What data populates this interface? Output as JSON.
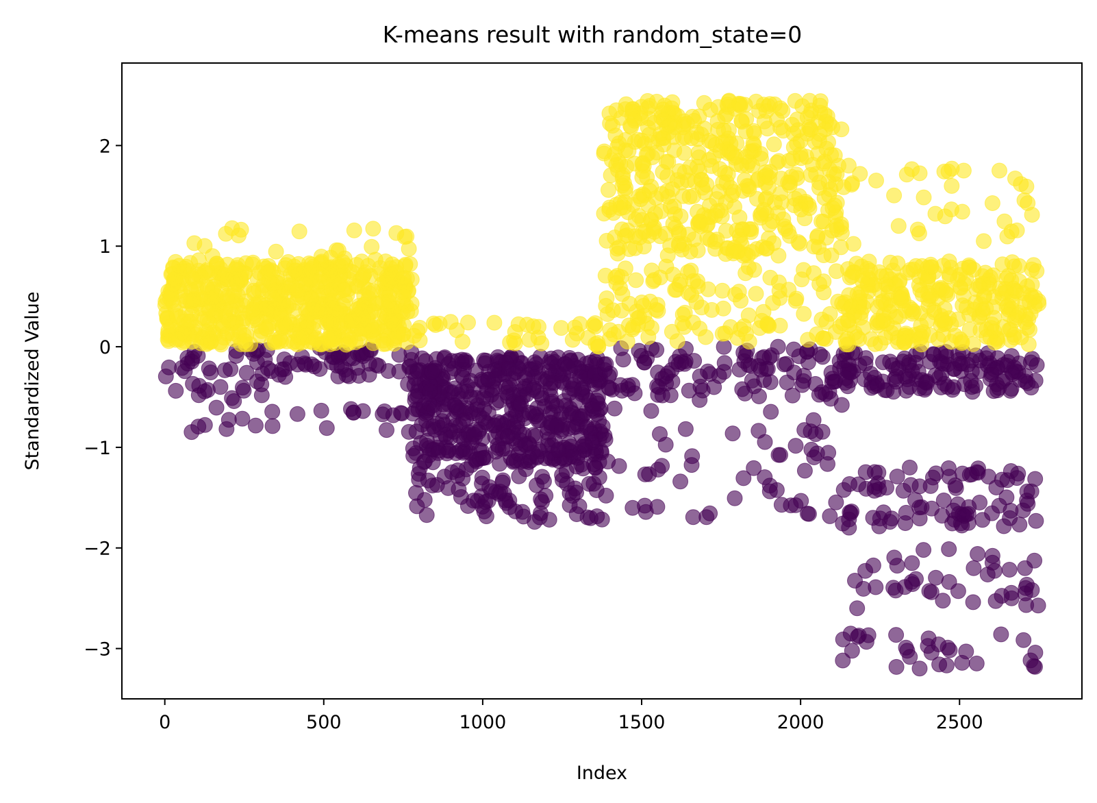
{
  "chart_data": {
    "type": "scatter",
    "title": "K-means result with random_state=0",
    "xlabel": "Index",
    "ylabel": "Standardized Value",
    "xlim": [
      -135,
      2885
    ],
    "ylim": [
      -3.5,
      2.82
    ],
    "xticks": [
      0,
      500,
      1000,
      1500,
      2000,
      2500
    ],
    "yticks": [
      -3,
      -2,
      -1,
      0,
      1,
      2
    ],
    "grid": false,
    "legend": false,
    "n_points": 2750,
    "clusters": [
      {
        "cluster": 0,
        "color": "#440154",
        "opacity": 0.6
      },
      {
        "cluster": 1,
        "color": "#fde725",
        "opacity": 0.6
      }
    ],
    "segments": [
      {
        "x_range": [
          0,
          780
        ],
        "bands": [
          {
            "cluster": 1,
            "y_range": [
              0.02,
              0.85
            ],
            "share": 0.82
          },
          {
            "cluster": 1,
            "y_range": [
              0.85,
              1.18
            ],
            "share": 0.03
          },
          {
            "cluster": 0,
            "y_range": [
              -0.3,
              0.0
            ],
            "share": 0.1
          },
          {
            "cluster": 0,
            "y_range": [
              -0.85,
              -0.3
            ],
            "share": 0.05
          }
        ]
      },
      {
        "x_range": [
          780,
          1380
        ],
        "bands": [
          {
            "cluster": 0,
            "y_range": [
              -1.15,
              -0.1
            ],
            "share": 0.8
          },
          {
            "cluster": 0,
            "y_range": [
              -1.75,
              -1.15
            ],
            "share": 0.14
          },
          {
            "cluster": 1,
            "y_range": [
              0.0,
              0.25
            ],
            "share": 0.06
          }
        ]
      },
      {
        "x_range": [
          1380,
          2130
        ],
        "bands": [
          {
            "cluster": 1,
            "y_range": [
              0.9,
              2.45
            ],
            "share": 0.62
          },
          {
            "cluster": 1,
            "y_range": [
              0.05,
              0.8
            ],
            "share": 0.16
          },
          {
            "cluster": 0,
            "y_range": [
              -0.5,
              0.0
            ],
            "share": 0.14
          },
          {
            "cluster": 0,
            "y_range": [
              -1.75,
              -0.5
            ],
            "share": 0.08
          }
        ]
      },
      {
        "x_range": [
          2130,
          2750
        ],
        "bands": [
          {
            "cluster": 1,
            "y_range": [
              0.02,
              0.85
            ],
            "share": 0.46
          },
          {
            "cluster": 1,
            "y_range": [
              1.0,
              1.8
            ],
            "share": 0.06
          },
          {
            "cluster": 0,
            "y_range": [
              -0.45,
              -0.05
            ],
            "share": 0.22
          },
          {
            "cluster": 0,
            "y_range": [
              -1.8,
              -1.2
            ],
            "share": 0.14
          },
          {
            "cluster": 0,
            "y_range": [
              -2.6,
              -2.0
            ],
            "share": 0.07
          },
          {
            "cluster": 0,
            "y_range": [
              -3.2,
              -2.85
            ],
            "share": 0.05
          }
        ]
      }
    ]
  }
}
